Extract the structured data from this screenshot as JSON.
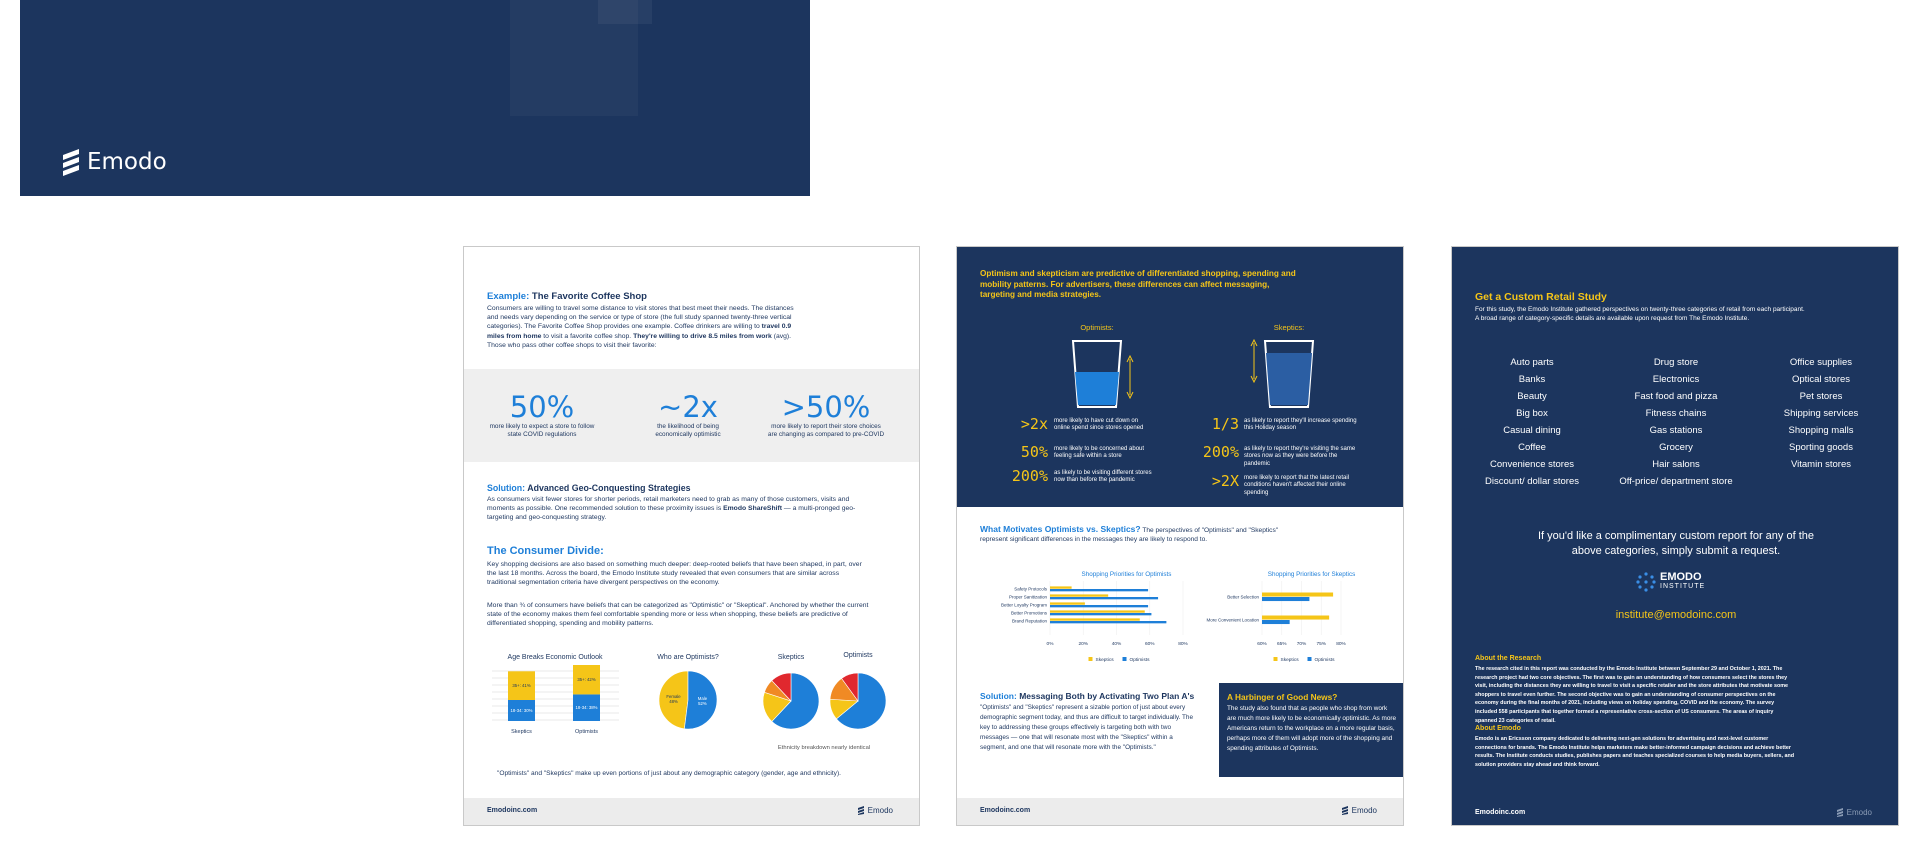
{
  "banner": {
    "logo": "Emodo"
  },
  "page1": {
    "example_label": "Example:",
    "example_title": "The Favorite Coffee Shop",
    "example_body": [
      "Consumers are willing to travel some distance to visit stores that best meet their needs. The distances and needs vary depending on the service or type of store (the full study spanned twenty-three vertical categories). The Favorite Coffee Shop provides one example. Coffee drinkers are willing to ",
      "travel 0.9 miles from home",
      " to visit a favorite coffee shop. ",
      "They're willing to drive 8.5 miles from work",
      " (avg). Those who pass other coffee shops to visit their favorite:"
    ],
    "stats": [
      {
        "value": "50%",
        "label": "more likely to expect a store to follow state COVID regulations"
      },
      {
        "value": "~2x",
        "label": "the likelihood of being economically optimistic"
      },
      {
        "value": ">50%",
        "label": "more likely to report their store choices are changing as compared to pre-COVID"
      }
    ],
    "solution_label": "Solution:",
    "solution_title": "Advanced Geo-Conquesting Strategies",
    "solution_body": [
      "As consumers visit fewer stores for shorter periods, retail marketers need to grab as many of those customers, visits and moments as possible. One recommended solution to these proximity issues is ",
      "Emodo ShareShift",
      " — a multi-pronged geo-targeting and geo-conquesting strategy."
    ],
    "divide_title": "The Consumer Divide:",
    "divide_body_1": "Key shopping decisions are also based on something much deeper: deep-rooted beliefs that have been shaped, in part, over the last 18 months. Across the board, the Emodo Institute study revealed that even consumers that are similar across traditional segmentation criteria have divergent perspectives on the economy.",
    "divide_body_2": "More than ¾ of consumers have beliefs that can be categorized as \"Optimistic\" or \"Skeptical\". Anchored by whether the current state of the economy makes them feel comfortable spending more or less when shopping, these beliefs are predictive of differentiated shopping, spending and mobility patterns.",
    "age_chart": {
      "title": "Age Breaks Economic Outlook",
      "categories": [
        "Skeptics",
        "Optimists"
      ],
      "series": [
        {
          "color": "#1e7fd8",
          "values": [
            30,
            38
          ],
          "value_labels": [
            "18-34: 30%",
            "18-34: 38%"
          ]
        },
        {
          "color": "#f5c518",
          "values": [
            41,
            42
          ],
          "value_labels": [
            "35+: 41%",
            "35+: 42%"
          ]
        }
      ]
    },
    "gender_chart": {
      "title": "Who are Optimists?",
      "labels": [
        "Female",
        "Male"
      ],
      "values": [
        48,
        52
      ],
      "value_labels": [
        "48%",
        "52%"
      ],
      "colors": [
        "#f5c518",
        "#1e7fd8"
      ]
    },
    "ethnicity_charts": [
      {
        "title": "Skeptics",
        "values": [
          62,
          18,
          8,
          12
        ],
        "colors": [
          "#1e7fd8",
          "#f5c518",
          "#f08a24",
          "#e0282e"
        ]
      },
      {
        "title": "Optimists",
        "values": [
          64,
          12,
          14,
          10
        ],
        "colors": [
          "#1e7fd8",
          "#f5c518",
          "#f08a24",
          "#e0282e"
        ]
      }
    ],
    "ethnicity_note": "Ethnicity breakdown nearly identical",
    "footnote": "\"Optimists\" and \"Skeptics\" make up even portions of just about any demographic category (gender, age and ethnicity).",
    "footer_url": "Emodoinc.com",
    "footer_logo": "Emodo"
  },
  "page2": {
    "intro": "Optimism and skepticism are predictive of differentiated shopping, spending and mobility patterns. For advertisers, these differences can affect messaging, targeting and media strategies.",
    "optimists_label": "Optimists:",
    "skeptics_label": "Skeptics:",
    "optimist_stats": [
      {
        "value": ">2x",
        "text": "more likely to have cut down on online spend since stores opened"
      },
      {
        "value": "50%",
        "text": "more likely to be concerned about feeling safe within a store"
      },
      {
        "value": "200%",
        "text": "as likely to be visiting different stores now than before the pandemic"
      }
    ],
    "skeptic_stats": [
      {
        "value": "1/3",
        "text": "as likely to report they'll increase spending this Holiday season"
      },
      {
        "value": "200%",
        "text": "as likely to report they're visiting the same stores now as they were before the pandemic"
      },
      {
        "value": ">2X",
        "text": "more likely to report that the latest retail conditions haven't affected their online spending"
      }
    ],
    "motivates_title": "What Motivates Optimists vs. Skeptics?",
    "motivates_body": " The perspectives of \"Optimists\" and \"Skeptics\" represent significant differences in the messages they are likely to respond to.",
    "charts": [
      {
        "type": "bar",
        "title": "Shopping Priorities for Optimists",
        "categories": [
          "Safety Protocols",
          "Proper Sanitization",
          "Better Loyalty Program",
          "Better Promotions",
          "Brand Reputation"
        ],
        "series": [
          {
            "name": "Skeptics",
            "color": "#f5c518",
            "values": [
              13,
              35,
              21,
              57,
              54
            ]
          },
          {
            "name": "Optimists",
            "color": "#1e7fd8",
            "values": [
              59,
              65,
              59,
              61,
              70
            ]
          }
        ],
        "xlim": [
          0,
          80
        ],
        "xticks": [
          {
            "value": 0,
            "label": "0%"
          },
          {
            "value": 20,
            "label": "20%"
          },
          {
            "value": 40,
            "label": "40%"
          },
          {
            "value": 60,
            "label": "60%"
          },
          {
            "value": 80,
            "label": "80%"
          }
        ]
      },
      {
        "type": "bar",
        "title": "Shopping Priorities for Skeptics",
        "categories": [
          "Better Selection",
          "More Convenient Location"
        ],
        "series": [
          {
            "name": "Skeptics",
            "color": "#f5c518",
            "values": [
              78,
              77
            ]
          },
          {
            "name": "Optimists",
            "color": "#1e7fd8",
            "values": [
              72,
              67
            ]
          }
        ],
        "xlim": [
          60,
          80
        ],
        "xticks": [
          {
            "value": 60,
            "label": "60%"
          },
          {
            "value": 65,
            "label": "65%"
          },
          {
            "value": 70,
            "label": "70%"
          },
          {
            "value": 75,
            "label": "75%"
          },
          {
            "value": 80,
            "label": "80%"
          }
        ]
      }
    ],
    "solution_label": "Solution:",
    "solution_title": "Messaging Both by Activating Two Plan A's",
    "solution_body": "\"Optimists\" and \"Skeptics\" represent a sizable portion of just about every demographic segment today, and thus are difficult to target individually. The key to addressing these groups effectively is targeting both with two messages — one that will resonate most with the \"Skeptics\" within a segment, and one that will resonate more with the \"Optimists.\"",
    "box_title": "A Harbinger of Good News?",
    "box_body": "The study also found that as people who shop from work are much more likely to be economically optimistic. As more Americans return to the workplace on a more regular basis, perhaps more of them will adopt more of the shopping and spending attributes of Optimists.",
    "footer_url": "Emodoinc.com",
    "footer_logo": "Emodo"
  },
  "page3": {
    "title": "Get a Custom Retail Study",
    "intro": "For this study, the Emodo Institute gathered perspectives on twenty-three categories of retail from each participant.  A broad range of category-specific details are available upon request from The Emodo Institute.",
    "categories": [
      [
        "Auto parts",
        "Banks",
        "Beauty",
        "Big box",
        "Casual dining",
        "Coffee",
        "Convenience stores",
        "Discount/ dollar stores"
      ],
      [
        "Drug store",
        "Electronics",
        "Fast food and pizza",
        "Fitness chains",
        "Gas stations",
        "Grocery",
        "Hair salons",
        "Off-price/ department store"
      ],
      [
        "Office supplies",
        "Optical stores",
        "Pet stores",
        "Shipping services",
        "Shopping malls",
        "Sporting goods",
        "Vitamin stores"
      ]
    ],
    "request": "If you'd like a complimentary custom report for any of the above categories, simply submit a request.",
    "logo_name": "EMODO",
    "logo_sub": "INSTITUTE",
    "email": "institute@emodoinc.com",
    "research_title": "About the Research",
    "research_body": "The research cited in this report was conducted by the Emodo Institute between September 29 and October 1, 2021. The research project had two core objectives. The first was to gain an understanding of how consumers select the stores they visit, including the distances they are willing to travel to visit a specific retailer and the store attributes that motivate some shoppers to travel even further. The second objective was to gain an understanding of consumer perspectives on the economy during the final months of 2021, including views on holiday spending, COVID and the economy. The survey included 558 participants that together formed a representative cross-section of US consumers. The areas of inquiry spanned 23 categories of retail.",
    "emodo_title": "About Emodo",
    "emodo_body": "Emodo is an Ericsson company dedicated to delivering next-gen solutions for advertising and next-level customer connections for brands. The Emodo Institute helps marketers make better-informed campaign decisions and achieve better results. The Institute conducts studies, publishes papers and teaches specialized courses to help media buyers, sellers, and solution providers stay ahead and think forward.",
    "footer_url": "Emodoinc.com",
    "footer_logo": "Emodo"
  }
}
